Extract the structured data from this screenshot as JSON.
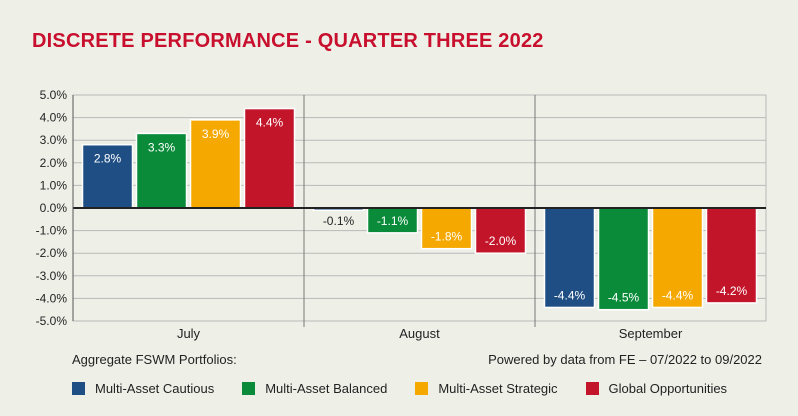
{
  "chart_data": {
    "type": "bar",
    "title": "DISCRETE PERFORMANCE - QUARTER THREE 2022",
    "categories": [
      "July",
      "August",
      "September"
    ],
    "series": [
      {
        "name": "Multi-Asset Cautious",
        "color": "#1f4e84",
        "values": [
          2.8,
          -0.1,
          -4.4
        ],
        "labels": [
          "2.8%",
          "-0.1%",
          "-4.4%"
        ]
      },
      {
        "name": "Multi-Asset Balanced",
        "color": "#0a8b3a",
        "values": [
          3.3,
          -1.1,
          -4.5
        ],
        "labels": [
          "3.3%",
          "-1.1%",
          "-4.5%"
        ]
      },
      {
        "name": "Multi-Asset Strategic",
        "color": "#f5a800",
        "values": [
          3.9,
          -1.8,
          -4.4
        ],
        "labels": [
          "3.9%",
          "-1.8%",
          "-4.4%"
        ]
      },
      {
        "name": "Global Opportunities",
        "color": "#c3152a",
        "values": [
          4.4,
          -2.0,
          -4.2
        ],
        "labels": [
          "4.4%",
          "-2.0%",
          "-4.2%"
        ]
      }
    ],
    "ylim": [
      -5.0,
      5.0
    ],
    "yticks": [
      "5.0%",
      "4.0%",
      "3.0%",
      "2.0%",
      "1.0%",
      "0.0%",
      "-1.0%",
      "-2.0%",
      "-3.0%",
      "-4.0%",
      "-5.0%"
    ],
    "xlabel": "",
    "ylabel": ""
  },
  "footer": {
    "left": "Aggregate FSWM Portfolios:",
    "right": "Powered by data from FE – 07/2022 to 09/2022"
  },
  "colors": {
    "title": "#c8102e",
    "grid": "#b8b8b8",
    "axis": "#222222"
  }
}
